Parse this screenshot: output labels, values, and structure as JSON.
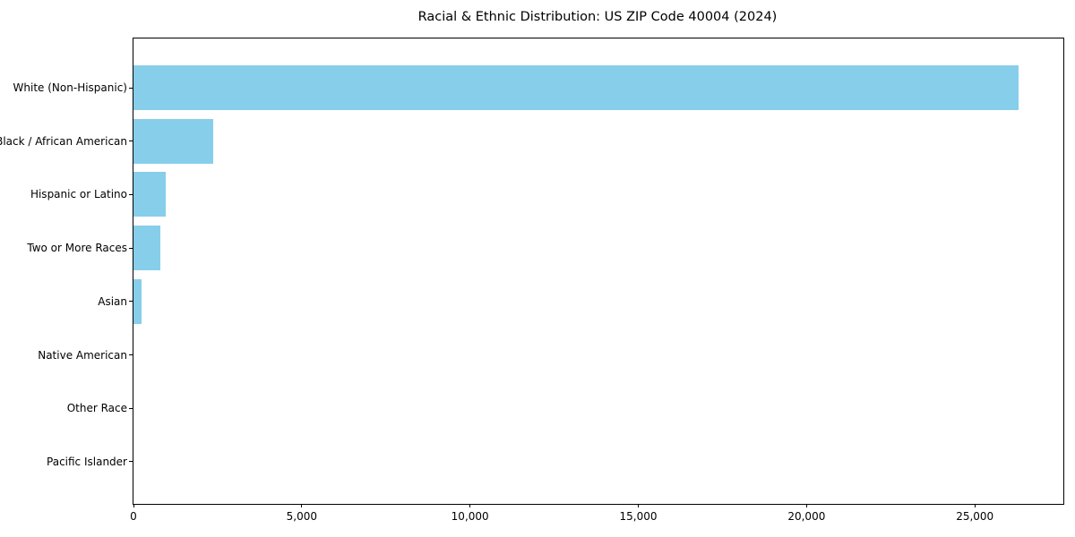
{
  "chart_data": {
    "type": "bar",
    "orientation": "horizontal",
    "title": "Racial & Ethnic Distribution: US ZIP Code 40004 (2024)",
    "categories": [
      "White (Non-Hispanic)",
      "Black / African American",
      "Hispanic or Latino",
      "Two or More Races",
      "Asian",
      "Native American",
      "Other Race",
      "Pacific Islander"
    ],
    "values": [
      26300,
      2370,
      950,
      800,
      250,
      0,
      0,
      0
    ],
    "xlabel": "",
    "ylabel": "",
    "xlim": [
      0,
      27630
    ],
    "xticks": [
      0,
      5000,
      10000,
      15000,
      20000,
      25000
    ],
    "xtick_labels": [
      "0",
      "5,000",
      "10,000",
      "15,000",
      "20,000",
      "25,000"
    ],
    "bar_color": "#87CEEB",
    "axis_color": "#000000",
    "background_color": "#FFFFFF",
    "text_color": "#000000",
    "grid": false,
    "legend": "none"
  }
}
